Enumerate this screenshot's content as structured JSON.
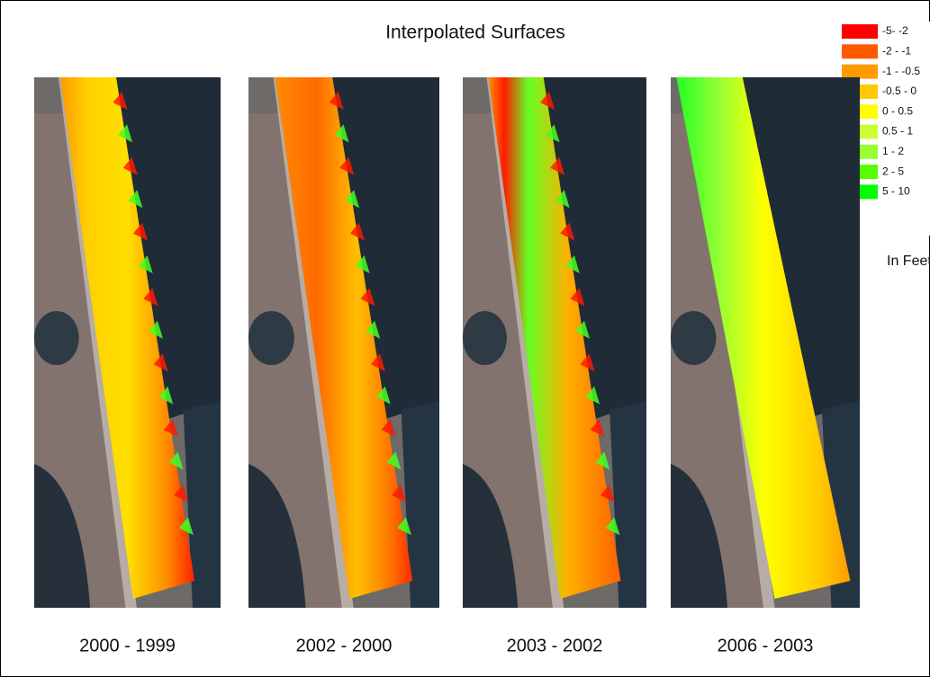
{
  "title": "Interpolated Surfaces",
  "legend": {
    "items": [
      {
        "label": "-5- -2",
        "color": "#ff0000"
      },
      {
        "label": "-2 - -1",
        "color": "#ff5a00"
      },
      {
        "label": "-1 - -0.5",
        "color": "#ff9a00"
      },
      {
        "label": "-0.5 - 0",
        "color": "#ffc800"
      },
      {
        "label": "0 - 0.5",
        "color": "#ffff00"
      },
      {
        "label": "0.5 - 1",
        "color": "#ccff33"
      },
      {
        "label": "1 - 2",
        "color": "#99ff33"
      },
      {
        "label": "2 - 5",
        "color": "#55ff00"
      },
      {
        "label": "5 - 10",
        "color": "#00ff00"
      }
    ],
    "units": "In Feet"
  },
  "panels": [
    {
      "label": "2000 - 1999"
    },
    {
      "label": "2002 - 2000"
    },
    {
      "label": "2003 - 2002"
    },
    {
      "label": "2006 - 2003"
    }
  ]
}
